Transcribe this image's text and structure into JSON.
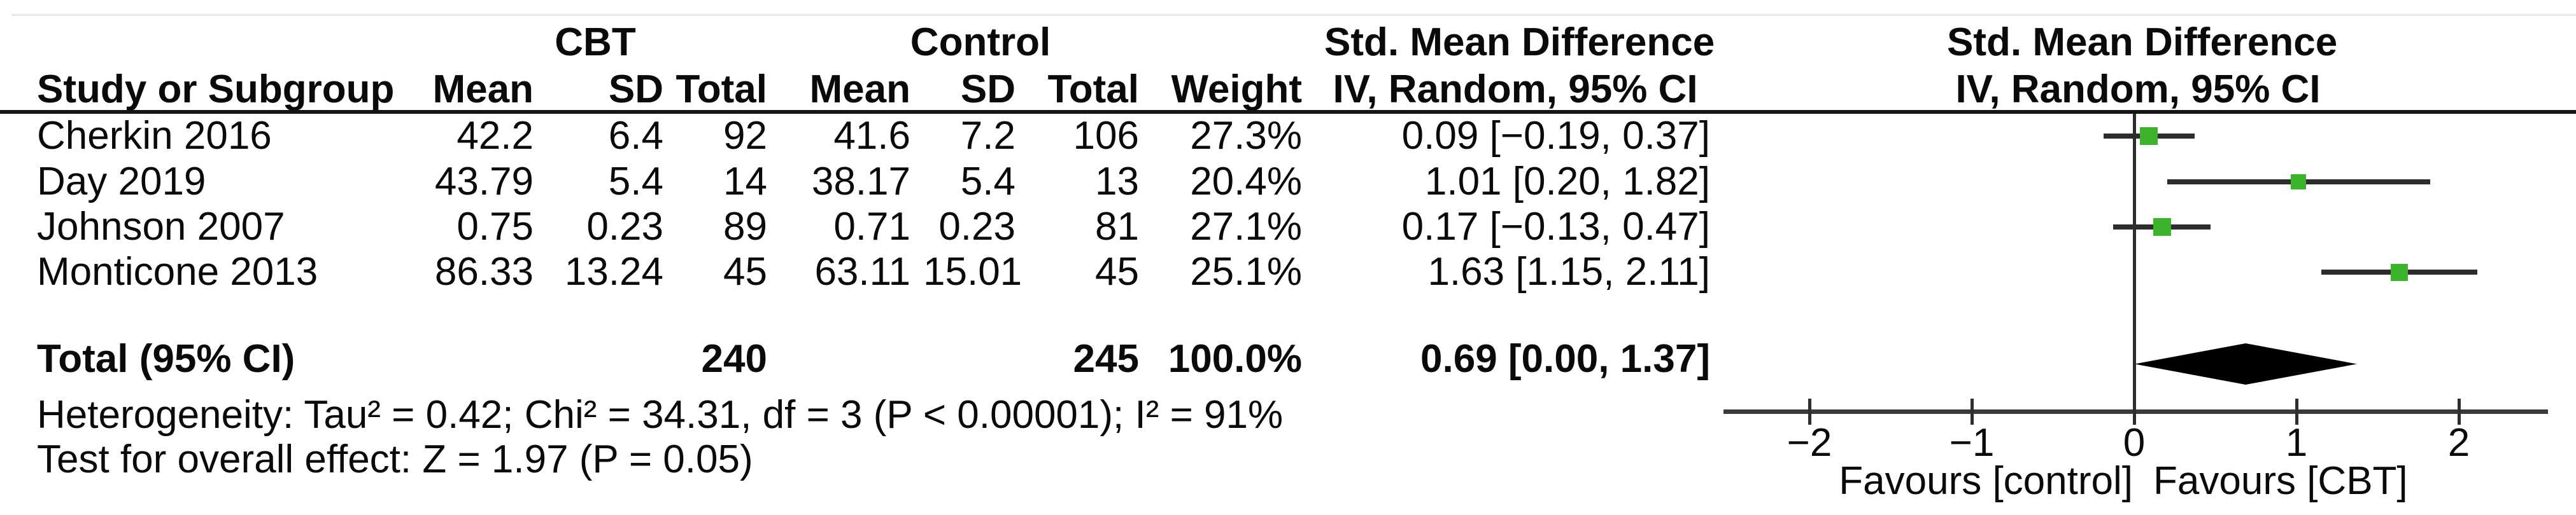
{
  "table": {
    "group1": "CBT",
    "group2": "Control",
    "columns": {
      "study": "Study or Subgroup",
      "mean": "Mean",
      "sd": "SD",
      "total": "Total",
      "weight": "Weight",
      "smd_title": "Std. Mean Difference",
      "smd_subtitle": "IV, Random, 95% CI"
    },
    "rows": [
      {
        "study": "Cherkin 2016",
        "mean1": "42.2",
        "sd1": "6.4",
        "total1": "92",
        "mean2": "41.6",
        "sd2": "7.2",
        "total2": "106",
        "weight": "27.3%",
        "ci": "0.09 [−0.19, 0.37]"
      },
      {
        "study": "Day 2019",
        "mean1": "43.79",
        "sd1": "5.4",
        "total1": "14",
        "mean2": "38.17",
        "sd2": "5.4",
        "total2": "13",
        "weight": "20.4%",
        "ci": "1.01 [0.20, 1.82]"
      },
      {
        "study": "Johnson 2007",
        "mean1": "0.75",
        "sd1": "0.23",
        "total1": "89",
        "mean2": "0.71",
        "sd2": "0.23",
        "total2": "81",
        "weight": "27.1%",
        "ci": "0.17 [−0.13, 0.47]"
      },
      {
        "study": "Monticone 2013",
        "mean1": "86.33",
        "sd1": "13.24",
        "total1": "45",
        "mean2": "63.11",
        "sd2": "15.01",
        "total2": "45",
        "weight": "25.1%",
        "ci": "1.63 [1.15, 2.11]"
      }
    ],
    "total_row": {
      "label": "Total (95% CI)",
      "total1": "240",
      "total2": "245",
      "weight": "100.0%",
      "ci": "0.69 [0.00, 1.37]"
    },
    "footer": {
      "heterogeneity": "Heterogeneity: Tau² = 0.42; Chi² = 34.31, df = 3 (P < 0.00001); I² = 91%",
      "overall_effect": "Test for overall effect: Z = 1.97 (P = 0.05)"
    }
  },
  "plot": {
    "title": "Std. Mean Difference",
    "subtitle": "IV, Random, 95% CI",
    "tick_labels": [
      "−2",
      "−1",
      "0",
      "1",
      "2"
    ],
    "favours_left": "Favours [control]",
    "favours_right": "Favours [CBT]"
  },
  "colors": {
    "marker_green": "#3cb22d",
    "ci_line": "#2d2d2d",
    "diamond_black": "#000000"
  },
  "chart_data": {
    "type": "scatter",
    "subtype": "forest-plot",
    "title": "Std. Mean Difference",
    "effect_model": "IV, Random, 95% CI",
    "xlabel_left": "Favours [control]",
    "xlabel_right": "Favours [CBT]",
    "xlim": [
      -2.5,
      2.5
    ],
    "x_ticks": [
      -2,
      -1,
      0,
      1,
      2
    ],
    "studies": [
      {
        "name": "Cherkin 2016",
        "smd": 0.09,
        "ci_low": -0.19,
        "ci_high": 0.37,
        "weight_pct": 27.3
      },
      {
        "name": "Day 2019",
        "smd": 1.01,
        "ci_low": 0.2,
        "ci_high": 1.82,
        "weight_pct": 20.4
      },
      {
        "name": "Johnson 2007",
        "smd": 0.17,
        "ci_low": -0.13,
        "ci_high": 0.47,
        "weight_pct": 27.1
      },
      {
        "name": "Monticone 2013",
        "smd": 1.63,
        "ci_low": 1.15,
        "ci_high": 2.11,
        "weight_pct": 25.1
      }
    ],
    "total": {
      "label": "Total (95% CI)",
      "smd": 0.69,
      "ci_low": 0.0,
      "ci_high": 1.37,
      "weight_pct": 100.0
    },
    "heterogeneity": {
      "tau2": 0.42,
      "chi2": 34.31,
      "df": 3,
      "p": "< 0.00001",
      "i2_pct": 91
    },
    "overall_effect": {
      "z": 1.97,
      "p": 0.05
    }
  }
}
